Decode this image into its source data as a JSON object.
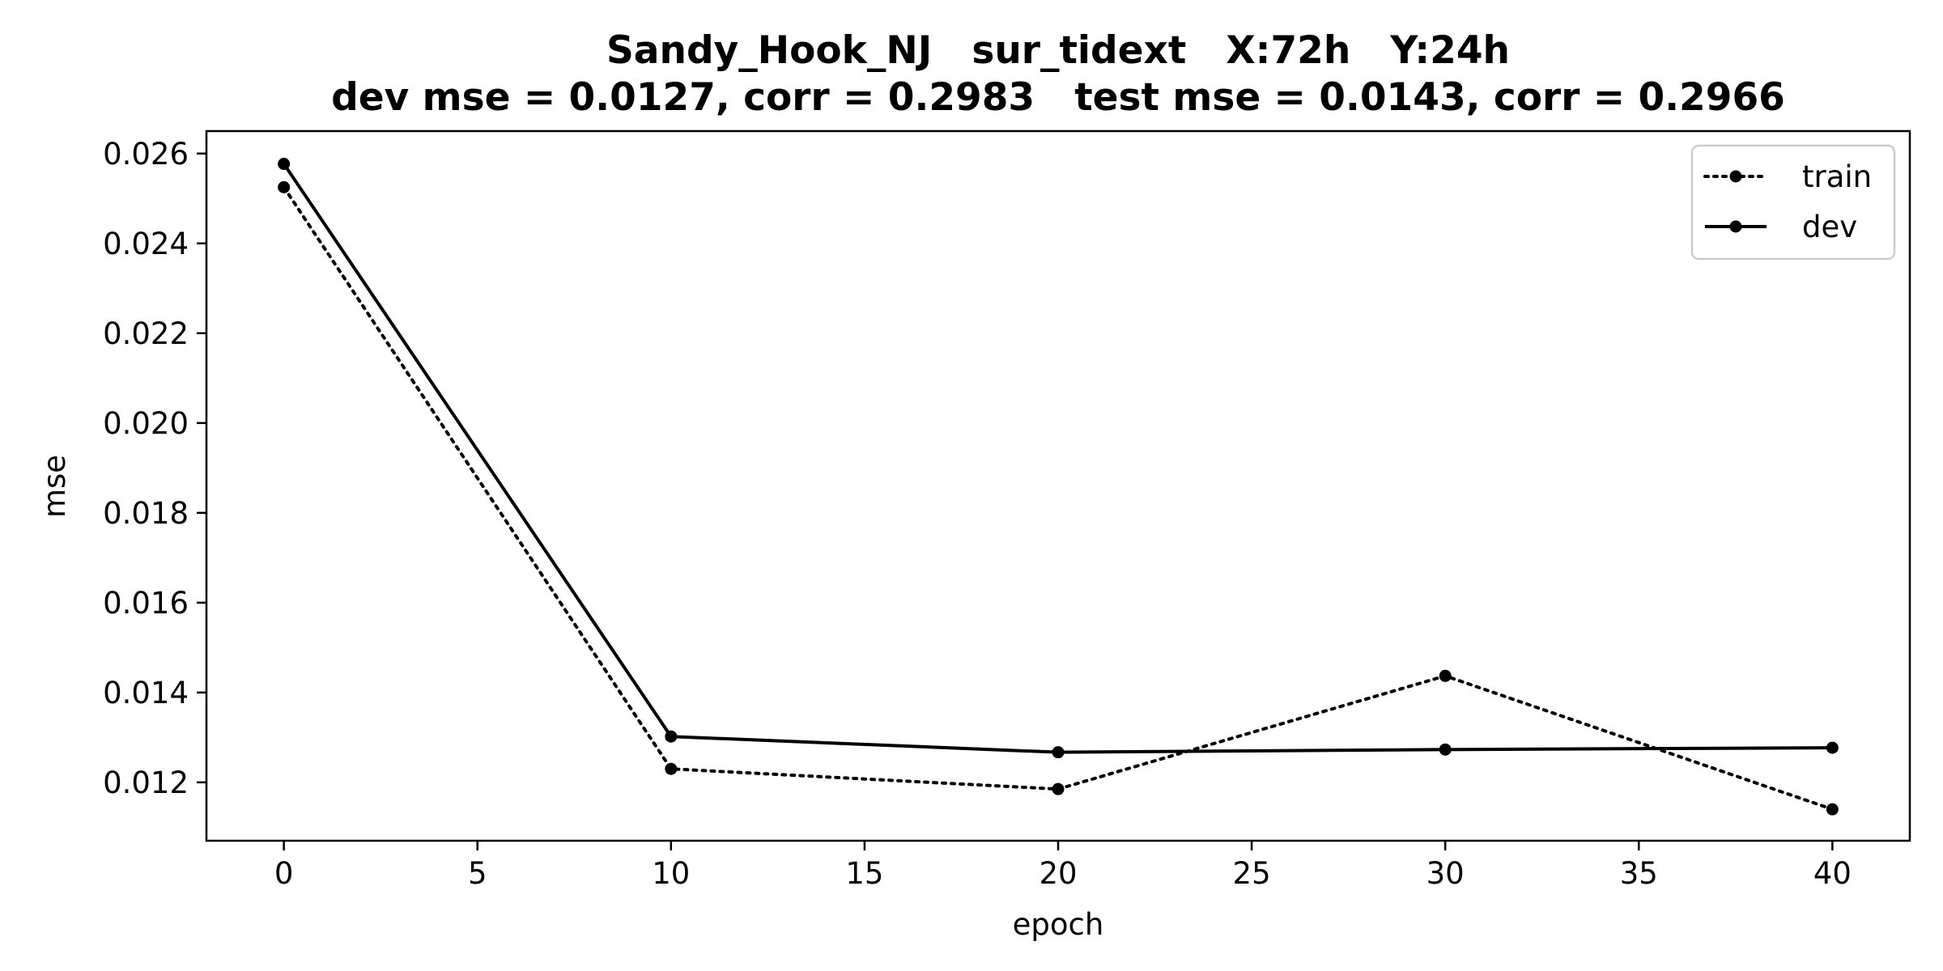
{
  "chart_data": {
    "type": "line",
    "title_line1": "Sandy_Hook_NJ   sur_tidext   X:72h   Y:24h",
    "title_line2": "dev mse = 0.0127, corr = 0.2983   test mse = 0.0143, corr = 0.2966",
    "xlabel": "epoch",
    "ylabel": "mse",
    "xlim": [
      -2,
      42
    ],
    "ylim": [
      0.0107,
      0.0265
    ],
    "xticks": [
      0,
      5,
      10,
      15,
      20,
      25,
      30,
      35,
      40
    ],
    "xtick_labels": [
      "0",
      "5",
      "10",
      "15",
      "20",
      "25",
      "30",
      "35",
      "40"
    ],
    "yticks": [
      0.012,
      0.014,
      0.016,
      0.018,
      0.02,
      0.022,
      0.024,
      0.026
    ],
    "ytick_labels": [
      "0.012",
      "0.014",
      "0.016",
      "0.018",
      "0.020",
      "0.022",
      "0.024",
      "0.026"
    ],
    "grid": false,
    "legend_position": "top-right",
    "x": [
      0,
      10,
      20,
      30,
      40
    ],
    "series": [
      {
        "name": "train",
        "style": "dotted",
        "color": "#000000",
        "values": [
          0.02525,
          0.0123,
          0.01185,
          0.01437,
          0.0114
        ]
      },
      {
        "name": "dev",
        "style": "solid",
        "color": "#000000",
        "values": [
          0.02577,
          0.01302,
          0.01267,
          0.01273,
          0.01277
        ]
      }
    ]
  }
}
